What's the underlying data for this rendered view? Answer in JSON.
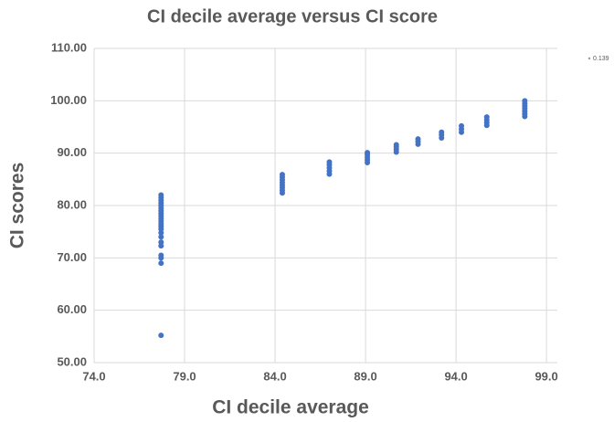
{
  "chart_data": {
    "type": "scatter",
    "title": "CI decile average versus CI score",
    "xlabel": "CI decile average",
    "ylabel": "CI scores",
    "annotation": "0.139",
    "xlim": [
      74,
      99.6
    ],
    "ylim": [
      50,
      110
    ],
    "xticks": [
      {
        "value": 74,
        "label": "74.0"
      },
      {
        "value": 79,
        "label": "79.0"
      },
      {
        "value": 84,
        "label": "84.0"
      },
      {
        "value": 89,
        "label": "89.0"
      },
      {
        "value": 94,
        "label": "94.0"
      },
      {
        "value": 99,
        "label": "99.0"
      }
    ],
    "yticks": [
      {
        "value": 50,
        "label": "50.00"
      },
      {
        "value": 60,
        "label": "60.00"
      },
      {
        "value": 70,
        "label": "70.00"
      },
      {
        "value": 80,
        "label": "80.00"
      },
      {
        "value": 90,
        "label": "90.00"
      },
      {
        "value": 100,
        "label": "100.00"
      },
      {
        "value": 110,
        "label": "110.00"
      }
    ],
    "grid": true,
    "series": [
      {
        "color": "#4472c4",
        "x": [
          77.7,
          77.7,
          77.7,
          77.7,
          77.7,
          77.7,
          77.7,
          77.7,
          77.7,
          77.7,
          77.7,
          77.7,
          77.7,
          77.7,
          77.7,
          77.7,
          77.7,
          77.7,
          77.7,
          77.7,
          77.7,
          77.7,
          84.4,
          84.4,
          84.4,
          84.4,
          84.4,
          84.4,
          84.4,
          84.4,
          87.0,
          87.0,
          87.0,
          87.0,
          87.0,
          89.1,
          89.1,
          89.1,
          89.1,
          89.1,
          90.7,
          90.7,
          90.7,
          90.7,
          91.9,
          91.9,
          91.9,
          93.2,
          93.2,
          93.2,
          94.3,
          94.3,
          94.3,
          95.7,
          95.7,
          95.7,
          95.7,
          97.8,
          97.8,
          97.8,
          97.8,
          97.8,
          97.8,
          97.8
        ],
        "y": [
          55.2,
          69.0,
          70.0,
          70.5,
          72.3,
          73.0,
          74.0,
          74.8,
          75.5,
          76.0,
          76.5,
          77.0,
          77.5,
          78.0,
          78.5,
          79.0,
          79.5,
          80.0,
          80.5,
          81.0,
          81.5,
          82.0,
          82.4,
          82.9,
          83.4,
          83.9,
          84.4,
          84.9,
          85.4,
          85.9,
          86.0,
          86.6,
          87.2,
          87.8,
          88.3,
          88.2,
          88.7,
          89.2,
          89.7,
          90.1,
          90.2,
          90.7,
          91.2,
          91.6,
          91.7,
          92.2,
          92.7,
          92.9,
          93.5,
          94.0,
          94.0,
          94.6,
          95.2,
          95.3,
          95.8,
          96.3,
          96.9,
          97.0,
          97.5,
          98.0,
          98.5,
          99.0,
          99.5,
          100.0
        ]
      }
    ]
  }
}
